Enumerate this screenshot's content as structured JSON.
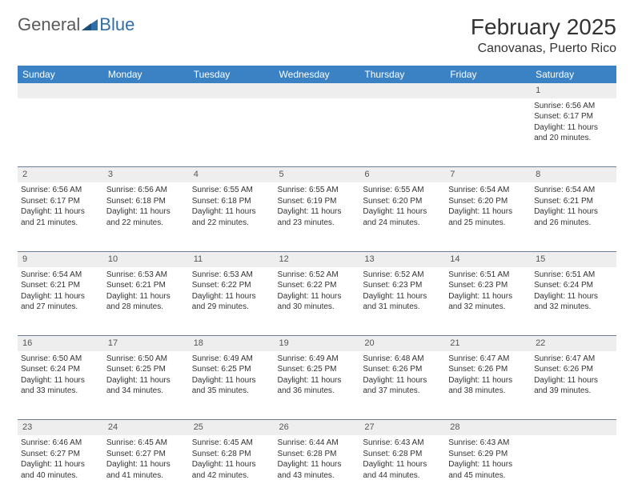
{
  "brand": {
    "part1": "General",
    "part2": "Blue"
  },
  "title": "February 2025",
  "location": "Canovanas, Puerto Rico",
  "colors": {
    "header_bg": "#3b82c4",
    "header_text": "#ffffff",
    "daynum_bg": "#eeeeee",
    "rule": "#6b7d8f",
    "text": "#333333",
    "logo_gray": "#5a5a5a",
    "logo_blue": "#2f6fa8"
  },
  "day_names": [
    "Sunday",
    "Monday",
    "Tuesday",
    "Wednesday",
    "Thursday",
    "Friday",
    "Saturday"
  ],
  "weeks": [
    [
      null,
      null,
      null,
      null,
      null,
      null,
      {
        "n": "1",
        "sr": "Sunrise: 6:56 AM",
        "ss": "Sunset: 6:17 PM",
        "dl1": "Daylight: 11 hours",
        "dl2": "and 20 minutes."
      }
    ],
    [
      {
        "n": "2",
        "sr": "Sunrise: 6:56 AM",
        "ss": "Sunset: 6:17 PM",
        "dl1": "Daylight: 11 hours",
        "dl2": "and 21 minutes."
      },
      {
        "n": "3",
        "sr": "Sunrise: 6:56 AM",
        "ss": "Sunset: 6:18 PM",
        "dl1": "Daylight: 11 hours",
        "dl2": "and 22 minutes."
      },
      {
        "n": "4",
        "sr": "Sunrise: 6:55 AM",
        "ss": "Sunset: 6:18 PM",
        "dl1": "Daylight: 11 hours",
        "dl2": "and 22 minutes."
      },
      {
        "n": "5",
        "sr": "Sunrise: 6:55 AM",
        "ss": "Sunset: 6:19 PM",
        "dl1": "Daylight: 11 hours",
        "dl2": "and 23 minutes."
      },
      {
        "n": "6",
        "sr": "Sunrise: 6:55 AM",
        "ss": "Sunset: 6:20 PM",
        "dl1": "Daylight: 11 hours",
        "dl2": "and 24 minutes."
      },
      {
        "n": "7",
        "sr": "Sunrise: 6:54 AM",
        "ss": "Sunset: 6:20 PM",
        "dl1": "Daylight: 11 hours",
        "dl2": "and 25 minutes."
      },
      {
        "n": "8",
        "sr": "Sunrise: 6:54 AM",
        "ss": "Sunset: 6:21 PM",
        "dl1": "Daylight: 11 hours",
        "dl2": "and 26 minutes."
      }
    ],
    [
      {
        "n": "9",
        "sr": "Sunrise: 6:54 AM",
        "ss": "Sunset: 6:21 PM",
        "dl1": "Daylight: 11 hours",
        "dl2": "and 27 minutes."
      },
      {
        "n": "10",
        "sr": "Sunrise: 6:53 AM",
        "ss": "Sunset: 6:21 PM",
        "dl1": "Daylight: 11 hours",
        "dl2": "and 28 minutes."
      },
      {
        "n": "11",
        "sr": "Sunrise: 6:53 AM",
        "ss": "Sunset: 6:22 PM",
        "dl1": "Daylight: 11 hours",
        "dl2": "and 29 minutes."
      },
      {
        "n": "12",
        "sr": "Sunrise: 6:52 AM",
        "ss": "Sunset: 6:22 PM",
        "dl1": "Daylight: 11 hours",
        "dl2": "and 30 minutes."
      },
      {
        "n": "13",
        "sr": "Sunrise: 6:52 AM",
        "ss": "Sunset: 6:23 PM",
        "dl1": "Daylight: 11 hours",
        "dl2": "and 31 minutes."
      },
      {
        "n": "14",
        "sr": "Sunrise: 6:51 AM",
        "ss": "Sunset: 6:23 PM",
        "dl1": "Daylight: 11 hours",
        "dl2": "and 32 minutes."
      },
      {
        "n": "15",
        "sr": "Sunrise: 6:51 AM",
        "ss": "Sunset: 6:24 PM",
        "dl1": "Daylight: 11 hours",
        "dl2": "and 32 minutes."
      }
    ],
    [
      {
        "n": "16",
        "sr": "Sunrise: 6:50 AM",
        "ss": "Sunset: 6:24 PM",
        "dl1": "Daylight: 11 hours",
        "dl2": "and 33 minutes."
      },
      {
        "n": "17",
        "sr": "Sunrise: 6:50 AM",
        "ss": "Sunset: 6:25 PM",
        "dl1": "Daylight: 11 hours",
        "dl2": "and 34 minutes."
      },
      {
        "n": "18",
        "sr": "Sunrise: 6:49 AM",
        "ss": "Sunset: 6:25 PM",
        "dl1": "Daylight: 11 hours",
        "dl2": "and 35 minutes."
      },
      {
        "n": "19",
        "sr": "Sunrise: 6:49 AM",
        "ss": "Sunset: 6:25 PM",
        "dl1": "Daylight: 11 hours",
        "dl2": "and 36 minutes."
      },
      {
        "n": "20",
        "sr": "Sunrise: 6:48 AM",
        "ss": "Sunset: 6:26 PM",
        "dl1": "Daylight: 11 hours",
        "dl2": "and 37 minutes."
      },
      {
        "n": "21",
        "sr": "Sunrise: 6:47 AM",
        "ss": "Sunset: 6:26 PM",
        "dl1": "Daylight: 11 hours",
        "dl2": "and 38 minutes."
      },
      {
        "n": "22",
        "sr": "Sunrise: 6:47 AM",
        "ss": "Sunset: 6:26 PM",
        "dl1": "Daylight: 11 hours",
        "dl2": "and 39 minutes."
      }
    ],
    [
      {
        "n": "23",
        "sr": "Sunrise: 6:46 AM",
        "ss": "Sunset: 6:27 PM",
        "dl1": "Daylight: 11 hours",
        "dl2": "and 40 minutes."
      },
      {
        "n": "24",
        "sr": "Sunrise: 6:45 AM",
        "ss": "Sunset: 6:27 PM",
        "dl1": "Daylight: 11 hours",
        "dl2": "and 41 minutes."
      },
      {
        "n": "25",
        "sr": "Sunrise: 6:45 AM",
        "ss": "Sunset: 6:28 PM",
        "dl1": "Daylight: 11 hours",
        "dl2": "and 42 minutes."
      },
      {
        "n": "26",
        "sr": "Sunrise: 6:44 AM",
        "ss": "Sunset: 6:28 PM",
        "dl1": "Daylight: 11 hours",
        "dl2": "and 43 minutes."
      },
      {
        "n": "27",
        "sr": "Sunrise: 6:43 AM",
        "ss": "Sunset: 6:28 PM",
        "dl1": "Daylight: 11 hours",
        "dl2": "and 44 minutes."
      },
      {
        "n": "28",
        "sr": "Sunrise: 6:43 AM",
        "ss": "Sunset: 6:29 PM",
        "dl1": "Daylight: 11 hours",
        "dl2": "and 45 minutes."
      },
      null
    ]
  ]
}
